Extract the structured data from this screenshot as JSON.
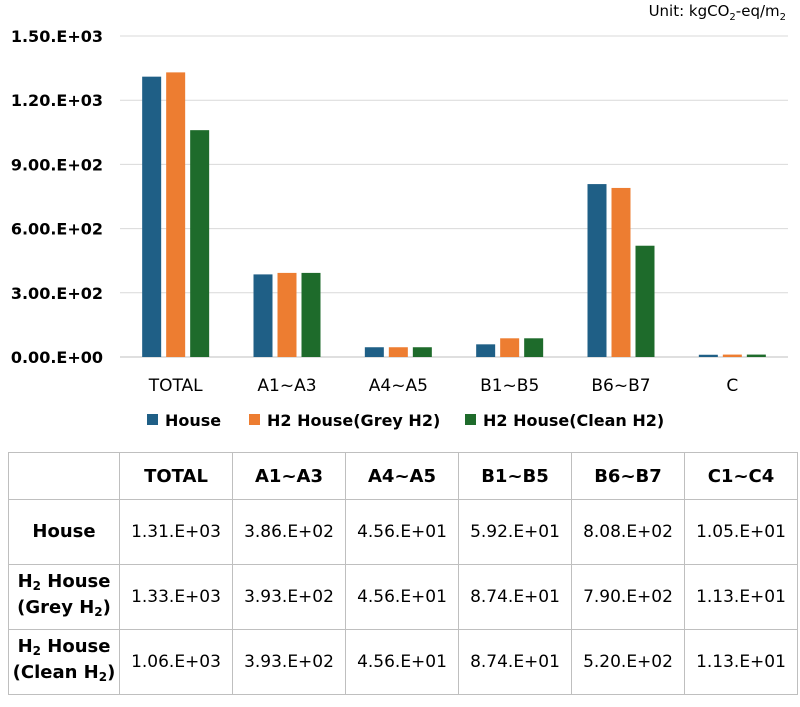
{
  "unit_prefix": "Unit: kgCO",
  "unit_sub1": "2",
  "unit_mid": "-eq/m",
  "unit_sub2": "2",
  "chart_data": {
    "type": "bar",
    "categories": [
      "TOTAL",
      "A1~A3",
      "A4~A5",
      "B1~B5",
      "B6~B7",
      "C"
    ],
    "series": [
      {
        "name": "House",
        "color": "#1f5f86",
        "values": [
          1310,
          386,
          45.6,
          59.2,
          808,
          10.5
        ]
      },
      {
        "name": "H2 House(Grey H2)",
        "color": "#ed7d31",
        "values": [
          1330,
          393,
          45.6,
          87.4,
          790,
          11.3
        ]
      },
      {
        "name": "H2 House(Clean H2)",
        "color": "#1e6b2b",
        "values": [
          1060,
          393,
          45.6,
          87.4,
          520,
          11.3
        ]
      }
    ],
    "yticks": [
      0,
      300,
      600,
      900,
      1200,
      1500
    ],
    "ytick_labels": [
      "0.00.E+00",
      "3.00.E+02",
      "6.00.E+02",
      "9.00.E+02",
      "1.20.E+03",
      "1.50.E+03"
    ],
    "ylim": [
      0,
      1500
    ],
    "grid": true,
    "legend_position": "bottom"
  },
  "table": {
    "headers": [
      "TOTAL",
      "A1~A3",
      "A4~A5",
      "B1~B5",
      "B6~B7",
      "C1~C4"
    ],
    "rows": [
      {
        "label_lines": [
          "House"
        ],
        "values": [
          "1.31.E+03",
          "3.86.E+02",
          "4.56.E+01",
          "5.92.E+01",
          "8.08.E+02",
          "1.05.E+01"
        ]
      },
      {
        "label_line1_pre": "H",
        "label_line1_sub": "2",
        "label_line1_post": " House",
        "label_line2_pre": "(Grey H",
        "label_line2_sub": "2",
        "label_line2_post": ")",
        "values": [
          "1.33.E+03",
          "3.93.E+02",
          "4.56.E+01",
          "8.74.E+01",
          "7.90.E+02",
          "1.13.E+01"
        ]
      },
      {
        "label_line1_pre": "H",
        "label_line1_sub": "2",
        "label_line1_post": " House",
        "label_line2_pre": "(Clean H",
        "label_line2_sub": "2",
        "label_line2_post": ")",
        "values": [
          "1.06.E+03",
          "3.93.E+02",
          "4.56.E+01",
          "8.74.E+01",
          "5.20.E+02",
          "1.13.E+01"
        ]
      }
    ]
  }
}
